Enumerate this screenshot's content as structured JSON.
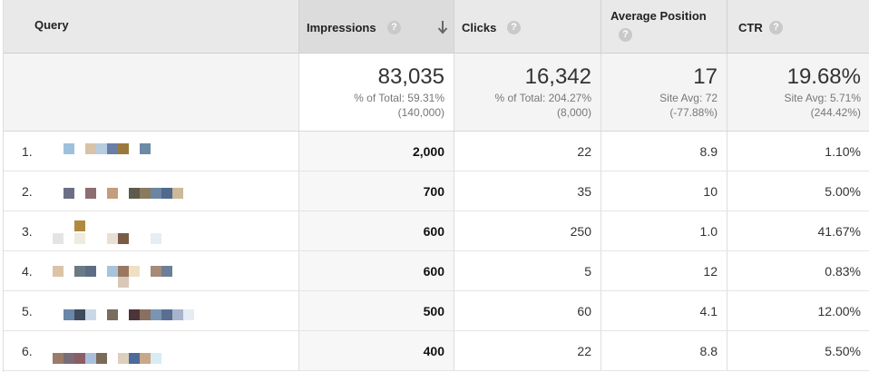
{
  "header": {
    "query": "Query",
    "impressions": "Impressions",
    "clicks": "Clicks",
    "average_position": "Average Position",
    "ctr": "CTR",
    "help_glyph": "?"
  },
  "totals": {
    "impressions": {
      "value": "83,035",
      "pct": "% of Total: 59.31%",
      "total": "(140,000)"
    },
    "clicks": {
      "value": "16,342",
      "pct": "% of Total: 204.27%",
      "total": "(8,000)"
    },
    "average_position": {
      "value": "17",
      "site_avg": "Site Avg: 72",
      "delta": "(-77.88%)"
    },
    "ctr": {
      "value": "19.68%",
      "site_avg": "Site Avg: 5.71%",
      "delta": "(244.42%)"
    }
  },
  "rows": [
    {
      "index": "1.",
      "impressions": "2,000",
      "clicks": "22",
      "average_position": "8.9",
      "ctr": "1.10%"
    },
    {
      "index": "2.",
      "impressions": "700",
      "clicks": "35",
      "average_position": "10",
      "ctr": "5.00%"
    },
    {
      "index": "3.",
      "impressions": "600",
      "clicks": "250",
      "average_position": "1.0",
      "ctr": "41.67%"
    },
    {
      "index": "4.",
      "impressions": "600",
      "clicks": "5",
      "average_position": "12",
      "ctr": "0.83%"
    },
    {
      "index": "5.",
      "impressions": "500",
      "clicks": "60",
      "average_position": "4.1",
      "ctr": "12.00%"
    },
    {
      "index": "6.",
      "impressions": "400",
      "clicks": "22",
      "average_position": "8.8",
      "ctr": "5.50%"
    }
  ],
  "icons": {
    "sort": "arrow-down-icon",
    "help": "help-circle-icon"
  },
  "colors": {
    "header_bg": "#e9e9e9",
    "sorted_col_bg": "#dcdcdc",
    "help_icon": "#c9c9c9"
  }
}
